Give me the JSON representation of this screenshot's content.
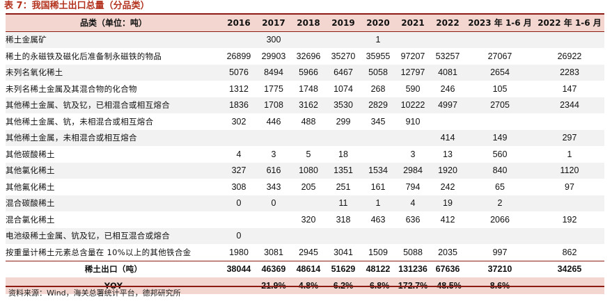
{
  "title": "表 7：我国稀土出口总量（分品类）",
  "header": {
    "category_label": "品类（单位：吨）",
    "years": [
      "2016",
      "2017",
      "2018",
      "2019",
      "2020",
      "2021",
      "2022",
      "2023 年 1-6 月",
      "2022 年 1-6 月"
    ]
  },
  "rows": [
    {
      "label": "稀土金属矿",
      "values": [
        "",
        "300",
        "",
        "",
        "1",
        "",
        "",
        "",
        ""
      ]
    },
    {
      "label": "稀土的永磁铁及磁化后准备制永磁铁的物品",
      "values": [
        "26899",
        "29903",
        "32696",
        "35270",
        "35955",
        "97207",
        "53257",
        "27067",
        "26922"
      ]
    },
    {
      "label": "未列名氧化稀土",
      "values": [
        "5076",
        "8494",
        "5966",
        "6467",
        "5058",
        "12797",
        "4081",
        "2654",
        "2283"
      ]
    },
    {
      "label": "未列名稀土金属及其混合物的化合物",
      "values": [
        "1312",
        "1775",
        "1748",
        "1074",
        "268",
        "590",
        "246",
        "105",
        "147"
      ]
    },
    {
      "label": "其他稀土金属、钪及钇，已相混合或相互熔合",
      "values": [
        "1836",
        "1708",
        "3162",
        "3530",
        "2829",
        "10222",
        "4997",
        "2705",
        "2344"
      ]
    },
    {
      "label": "其他稀土金属、钪，未相混合或相互熔合",
      "values": [
        "302",
        "446",
        "488",
        "299",
        "345",
        "910",
        "",
        "",
        ""
      ]
    },
    {
      "label": "其他稀土金属，未相混合或相互熔合",
      "values": [
        "",
        "",
        "",
        "",
        "",
        "",
        "414",
        "149",
        "297"
      ]
    },
    {
      "label": "其他碳酸稀土",
      "values": [
        "4",
        "3",
        "5",
        "18",
        "",
        "3",
        "13",
        "560",
        "1"
      ]
    },
    {
      "label": "其他氯化稀土",
      "values": [
        "327",
        "616",
        "1080",
        "1351",
        "1534",
        "2984",
        "1920",
        "840",
        "1120"
      ]
    },
    {
      "label": "其他氟化稀土",
      "values": [
        "308",
        "343",
        "205",
        "251",
        "161",
        "794",
        "242",
        "65",
        "97"
      ]
    },
    {
      "label": "混合碳酸稀土",
      "values": [
        "0",
        "0",
        "",
        "11",
        "1",
        "4",
        "19",
        "2",
        ""
      ]
    },
    {
      "label": "混合氯化稀土",
      "values": [
        "",
        "",
        "320",
        "318",
        "463",
        "636",
        "412",
        "2066",
        "192"
      ]
    },
    {
      "label": "电池级稀土金属、钪及钇，已相互混合或熔合",
      "values": [
        "0",
        "",
        "",
        "",
        "",
        "",
        "",
        "",
        ""
      ]
    },
    {
      "label": "按重量计稀土元素总含量在 10%以上的其他铁合金",
      "values": [
        "1980",
        "3081",
        "2945",
        "3041",
        "1509",
        "5088",
        "2035",
        "997",
        "862"
      ]
    }
  ],
  "total": {
    "label": "稀土出口（吨）",
    "values": [
      "38044",
      "46369",
      "48614",
      "51629",
      "48122",
      "131236",
      "67636",
      "37210",
      "34265"
    ]
  },
  "yoy": {
    "label": "YOY",
    "values": [
      "",
      "21.9%",
      "4.8%",
      "6.2%",
      "-6.8%",
      "172.7%",
      "-48.5%",
      "8.6%",
      ""
    ]
  },
  "source": "资料来源：Wind，海关总署统计平台，德邦研究所"
}
